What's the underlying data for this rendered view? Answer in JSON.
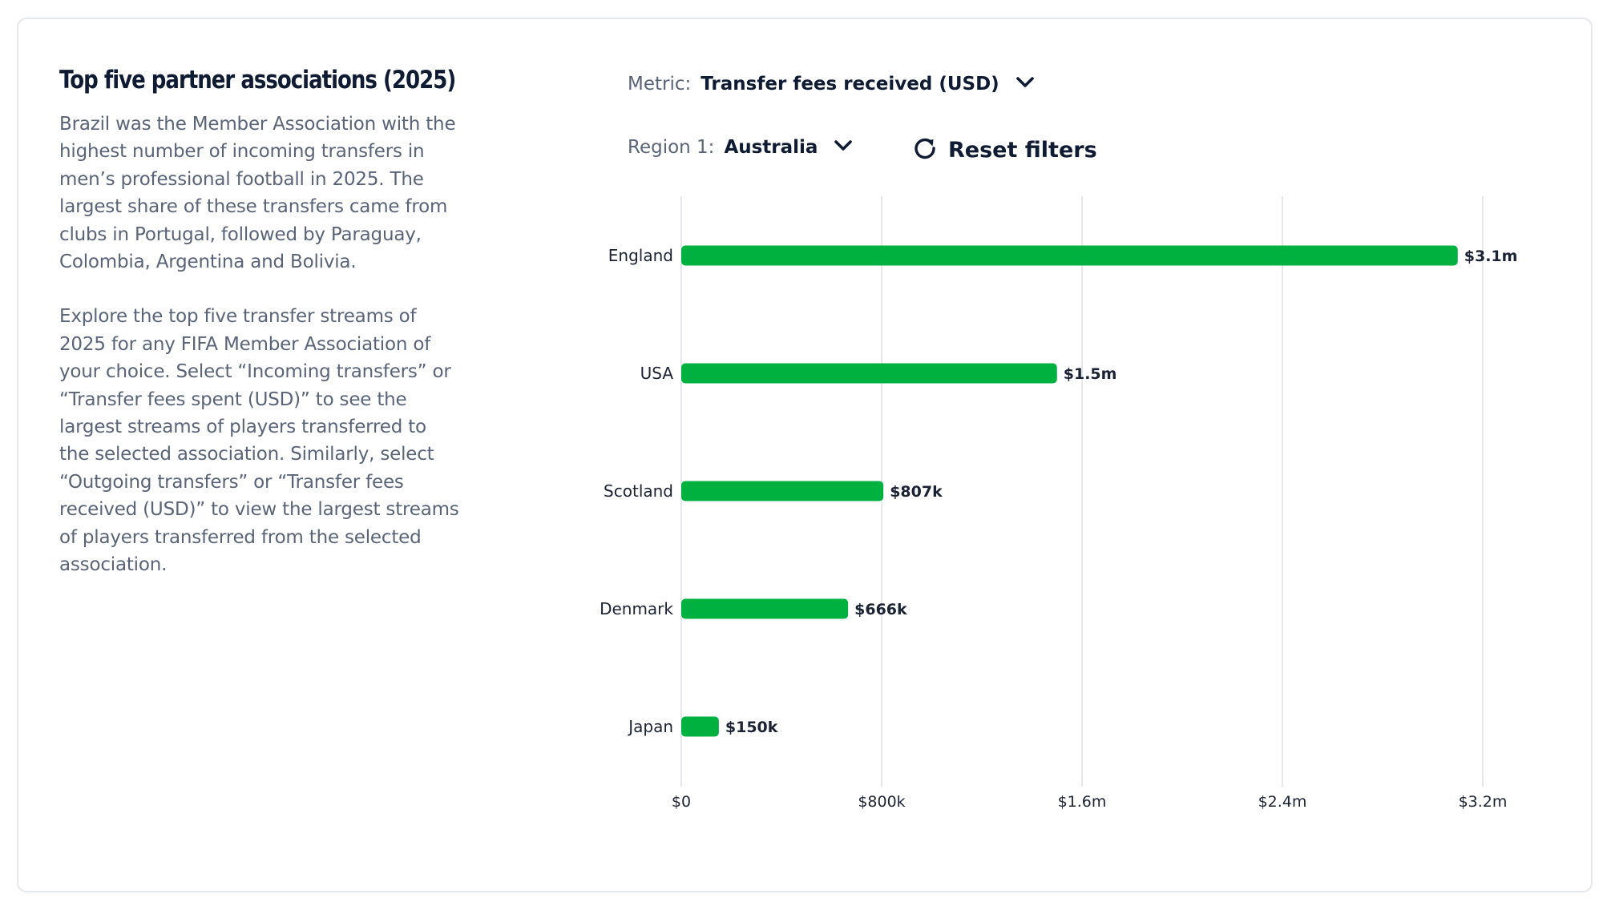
{
  "header": {
    "title": "Top five partner associations (2025)",
    "paragraph1": "Brazil was the Member Association with the highest number of incoming transfers in men’s professional football in 2025. The largest share of these transfers came from clubs in Portugal, followed by Paraguay, Colombia, Argentina and Bolivia.",
    "paragraph2": "Explore the top five transfer streams of 2025 for any FIFA Member Association of your choice. Select “Incoming transfers” or “Transfer fees spent (USD)” to see the largest streams of players transferred to the selected association. Similarly, select “Outgoing transfers” or “Transfer fees received (USD)” to view the largest streams of players transferred from the selected association."
  },
  "filters": {
    "metric_label": "Metric:",
    "metric_value": "Transfer fees received (USD)",
    "region_label": "Region 1:",
    "region_value": "Australia",
    "reset_label": "Reset filters",
    "chevron_icon": "chevron-down-icon",
    "reset_icon": "refresh-icon"
  },
  "colors": {
    "bar": "#00b140",
    "grid": "#e4e7ec",
    "text": "#1b2233"
  },
  "chart_data": {
    "type": "bar",
    "orientation": "horizontal",
    "categories": [
      "England",
      "USA",
      "Scotland",
      "Denmark",
      "Japan"
    ],
    "values": [
      3100000,
      1500000,
      807000,
      666000,
      150000
    ],
    "data_labels": [
      "$3.1m",
      "$1.5m",
      "$807k",
      "$666k",
      "$150k"
    ],
    "x_ticks": [
      0,
      800000,
      1600000,
      2400000,
      3200000
    ],
    "x_tick_labels": [
      "$0",
      "$800k",
      "$1.6m",
      "$2.4m",
      "$3.2m"
    ],
    "xlim": [
      0,
      3200000
    ],
    "grid": true,
    "title": "",
    "xlabel": "",
    "ylabel": ""
  }
}
